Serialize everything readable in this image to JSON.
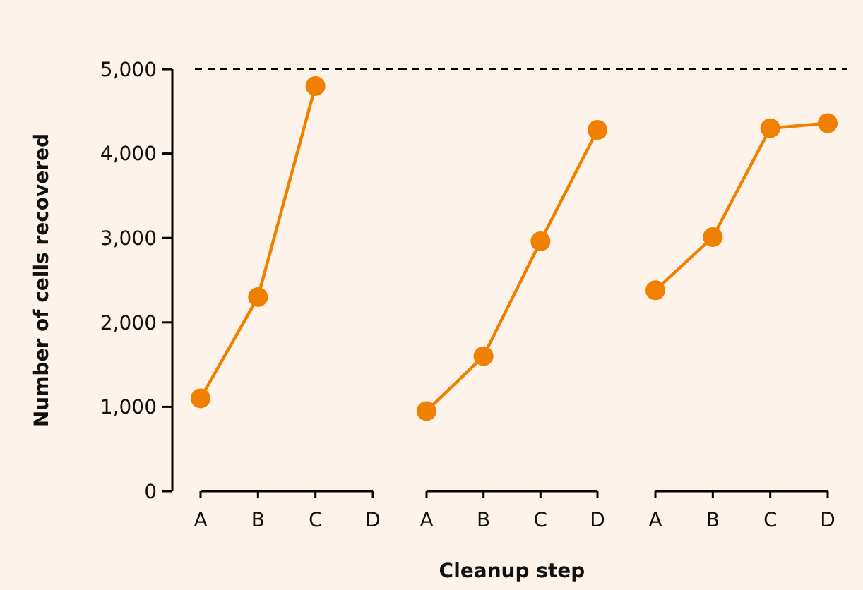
{
  "chart_data": [
    {
      "type": "line",
      "ylabel": "Number of cells recovered",
      "categories": [
        "A",
        "B",
        "C",
        "D"
      ],
      "series": [
        {
          "color": "#f08000",
          "values": [
            1100,
            2300,
            4800,
            null
          ]
        }
      ],
      "ylim": [
        0,
        5000
      ],
      "yticks": [
        0,
        {
          "value": 1000,
          "label": "1,000"
        },
        {
          "value": 2000,
          "label": "2,000"
        },
        {
          "value": 3000,
          "label": "3,000"
        },
        {
          "value": 4000,
          "label": "4,000"
        },
        {
          "value": 5000,
          "label": "5,000"
        }
      ],
      "ref_lines": [
        {
          "axis": "y",
          "value": 5000,
          "line_style": "dashed",
          "color": "#000000"
        }
      ],
      "marker": "circle",
      "grid": false
    },
    {
      "type": "line",
      "xlabel": "Cleanup step",
      "categories": [
        "A",
        "B",
        "C",
        "D"
      ],
      "series": [
        {
          "color": "#f08000",
          "values": [
            950,
            1600,
            2960,
            4280
          ]
        }
      ],
      "ylim": [
        0,
        5000
      ],
      "tick_labels": "x",
      "ref_lines": [
        {
          "axis": "y",
          "value": 5000,
          "line_style": "dashed",
          "color": "#000000"
        }
      ],
      "marker": "circle",
      "grid": false
    },
    {
      "type": "line",
      "categories": [
        "A",
        "B",
        "C",
        "D"
      ],
      "series": [
        {
          "color": "#f08000",
          "values": [
            2380,
            3010,
            4300,
            4360
          ]
        }
      ],
      "ylim": [
        0,
        5000
      ],
      "tick_labels": "x",
      "ref_lines": [
        {
          "axis": "y",
          "value": 5000,
          "line_style": "dashed",
          "color": "#000000"
        }
      ],
      "marker": "circle",
      "grid": false
    }
  ]
}
